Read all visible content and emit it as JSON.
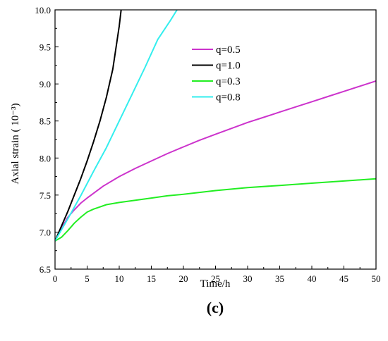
{
  "chart_data": {
    "type": "line",
    "xlabel": "Time/h",
    "ylabel": "Axial strain ( 10⁻³)",
    "panel_label": "(c)",
    "xlim": [
      0,
      50
    ],
    "ylim": [
      6.5,
      10.0
    ],
    "x_ticks": [
      0,
      5,
      10,
      15,
      20,
      25,
      30,
      35,
      40,
      45,
      50
    ],
    "x_tick_labels": [
      "0",
      "5",
      "10",
      "15",
      "20",
      "25",
      "30",
      "35",
      "40",
      "45",
      "50"
    ],
    "y_ticks": [
      6.5,
      7.0,
      7.5,
      8.0,
      8.5,
      9.0,
      9.5,
      10.0
    ],
    "y_tick_labels": [
      "6.5",
      "7.0",
      "7.5",
      "8.0",
      "8.5",
      "9.0",
      "9.5",
      "10.0"
    ],
    "legend_position": "upper-right",
    "series": [
      {
        "name": "q=0.5",
        "color": "#cc33cc",
        "x": [
          0,
          1,
          2,
          3,
          4,
          5,
          7.5,
          10,
          12.5,
          15,
          17.5,
          20,
          22.5,
          25,
          27.5,
          30,
          32.5,
          35,
          37.5,
          40,
          42.5,
          45,
          47.5,
          50
        ],
        "y": [
          6.88,
          7.05,
          7.2,
          7.3,
          7.39,
          7.46,
          7.62,
          7.75,
          7.86,
          7.96,
          8.06,
          8.15,
          8.24,
          8.32,
          8.4,
          8.48,
          8.55,
          8.62,
          8.69,
          8.76,
          8.83,
          8.9,
          8.97,
          9.04
        ]
      },
      {
        "name": "q=1.0",
        "color": "#000000",
        "x": [
          0,
          1,
          2,
          3,
          4,
          5,
          6,
          7,
          8,
          9,
          10,
          10.3
        ],
        "y": [
          6.88,
          7.08,
          7.28,
          7.5,
          7.72,
          7.96,
          8.22,
          8.5,
          8.82,
          9.2,
          9.78,
          10.0
        ]
      },
      {
        "name": "q=0.3",
        "color": "#22ee22",
        "x": [
          0,
          1,
          2,
          3,
          4,
          5,
          6,
          7,
          8,
          10,
          12.5,
          15,
          17.5,
          20,
          25,
          30,
          35,
          40,
          45,
          50
        ],
        "y": [
          6.88,
          6.93,
          7.02,
          7.12,
          7.2,
          7.27,
          7.31,
          7.34,
          7.37,
          7.4,
          7.43,
          7.46,
          7.49,
          7.51,
          7.56,
          7.6,
          7.63,
          7.66,
          7.69,
          7.72
        ]
      },
      {
        "name": "q=0.8",
        "color": "#33eeee",
        "x": [
          0,
          2,
          4,
          6,
          8,
          10,
          12,
          14,
          16,
          18,
          19
        ],
        "y": [
          6.88,
          7.18,
          7.49,
          7.82,
          8.14,
          8.5,
          8.86,
          9.22,
          9.6,
          9.86,
          10.0
        ]
      }
    ]
  }
}
